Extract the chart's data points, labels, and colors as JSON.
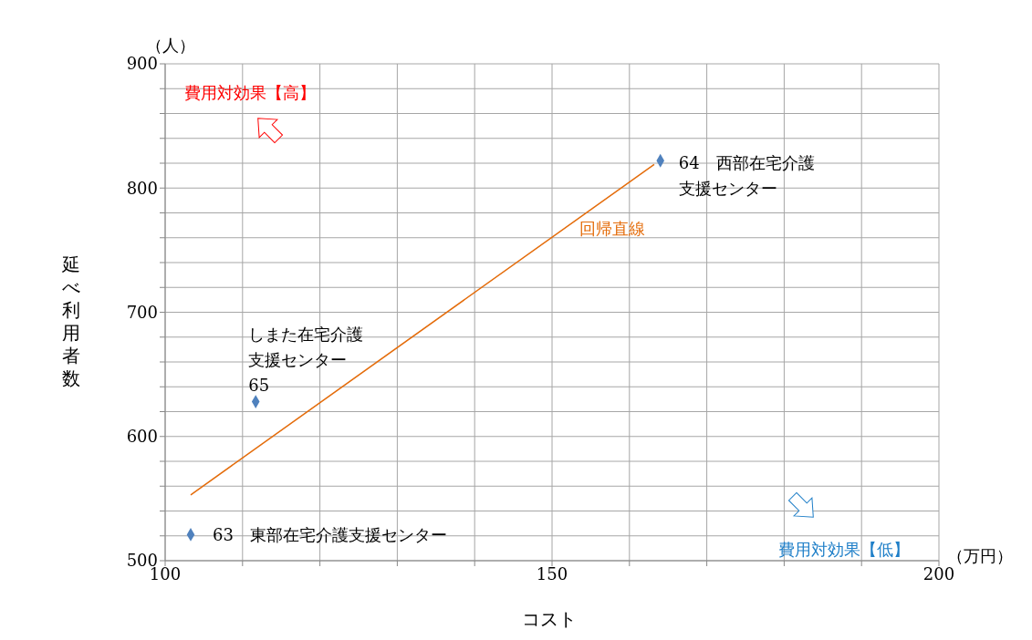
{
  "chart_data": {
    "type": "scatter",
    "xlabel": "コスト",
    "ylabel": "延べ利用者数",
    "xlim": [
      100,
      200
    ],
    "ylim": [
      500,
      900
    ],
    "xticks": [
      100,
      {
        "value": 110,
        "label": null
      },
      {
        "value": 120,
        "label": null
      },
      {
        "value": 130,
        "label": null
      },
      {
        "value": 140,
        "label": null
      },
      150,
      {
        "value": 160,
        "label": null
      },
      {
        "value": 170,
        "label": null
      },
      {
        "value": 180,
        "label": null
      },
      {
        "value": 190,
        "label": null
      },
      200
    ],
    "yticks": [
      500,
      {
        "value": 520,
        "label": null
      },
      {
        "value": 540,
        "label": null
      },
      {
        "value": 560,
        "label": null
      },
      {
        "value": 580,
        "label": null
      },
      600,
      {
        "value": 620,
        "label": null
      },
      {
        "value": 640,
        "label": null
      },
      {
        "value": 660,
        "label": null
      },
      {
        "value": 680,
        "label": null
      },
      700,
      {
        "value": 720,
        "label": null
      },
      {
        "value": 740,
        "label": null
      },
      {
        "value": 760,
        "label": null
      },
      {
        "value": 780,
        "label": null
      },
      800,
      {
        "value": 820,
        "label": null
      },
      {
        "value": 840,
        "label": null
      },
      {
        "value": 860,
        "label": null
      },
      {
        "value": 880,
        "label": null
      },
      900
    ],
    "grid": true,
    "marker": "diamond",
    "series": [
      {
        "color": "#4f81bd",
        "x": [
          103.3,
          111.7,
          164.0
        ],
        "values": [
          521,
          628,
          822
        ]
      },
      {
        "type": "line",
        "marker": "none",
        "color": "#e46c0a",
        "x": [
          103.3,
          163.2
        ],
        "values": [
          553,
          819
        ]
      }
    ],
    "annotations": [
      {
        "text": "63　東部在宅介護支援センター",
        "x": 103.3,
        "y": 521
      },
      {
        "text": "64　西部在宅介護支援センター",
        "x": 164.0,
        "y": 822
      },
      {
        "text": "しまた在宅介護支援センター65",
        "x": 111.7,
        "y": 628
      },
      "回帰直線",
      "（人）",
      "（万円）",
      "費用対効果【高】",
      "費用対効果【低】"
    ]
  }
}
